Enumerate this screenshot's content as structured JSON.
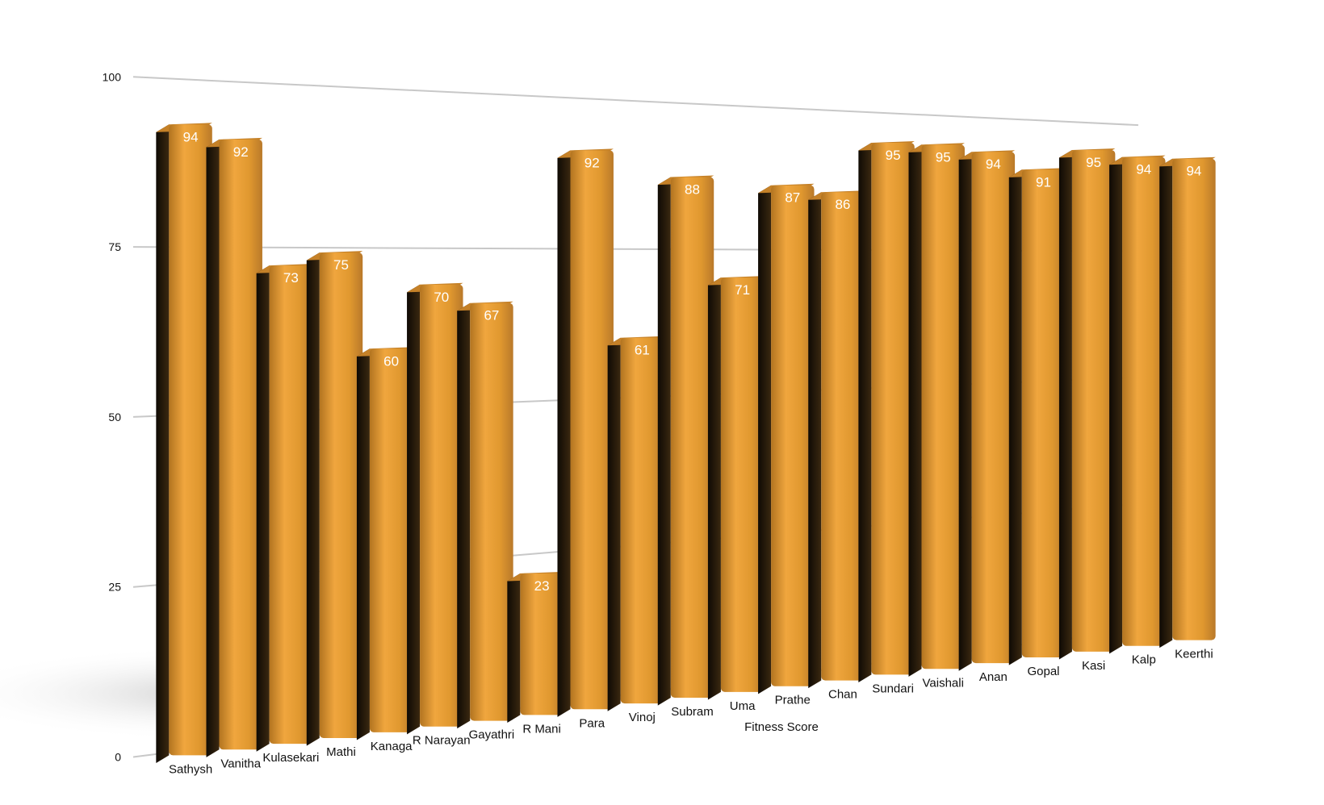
{
  "chart_data": {
    "type": "bar",
    "categories": [
      "Sathysh",
      "Vanitha",
      "Kulasekari",
      "Mathi",
      "Kanaga",
      "R Narayan",
      "Gayathri",
      "R Mani",
      "Para",
      "Vinoj",
      "Subram",
      "Uma",
      "Prathe",
      "Chan",
      "Sundari",
      "Vaishali",
      "Anan",
      "Gopal",
      "Kasi",
      "Kalp",
      "Keerthi"
    ],
    "series": [
      {
        "name": "Fitness Score",
        "values": [
          94,
          92,
          73,
          75,
          60,
          70,
          67,
          23,
          92,
          61,
          88,
          71,
          87,
          86,
          95,
          95,
          94,
          91,
          95,
          94,
          94
        ]
      }
    ],
    "ylim": [
      0,
      100
    ],
    "yticks": [
      0,
      25,
      50,
      75,
      100
    ],
    "grid": true,
    "legend": "bottom",
    "colors": {
      "bar": "#e39a36",
      "bar_dark": "#2a1e0c",
      "grid": "#c8c8c8"
    }
  }
}
